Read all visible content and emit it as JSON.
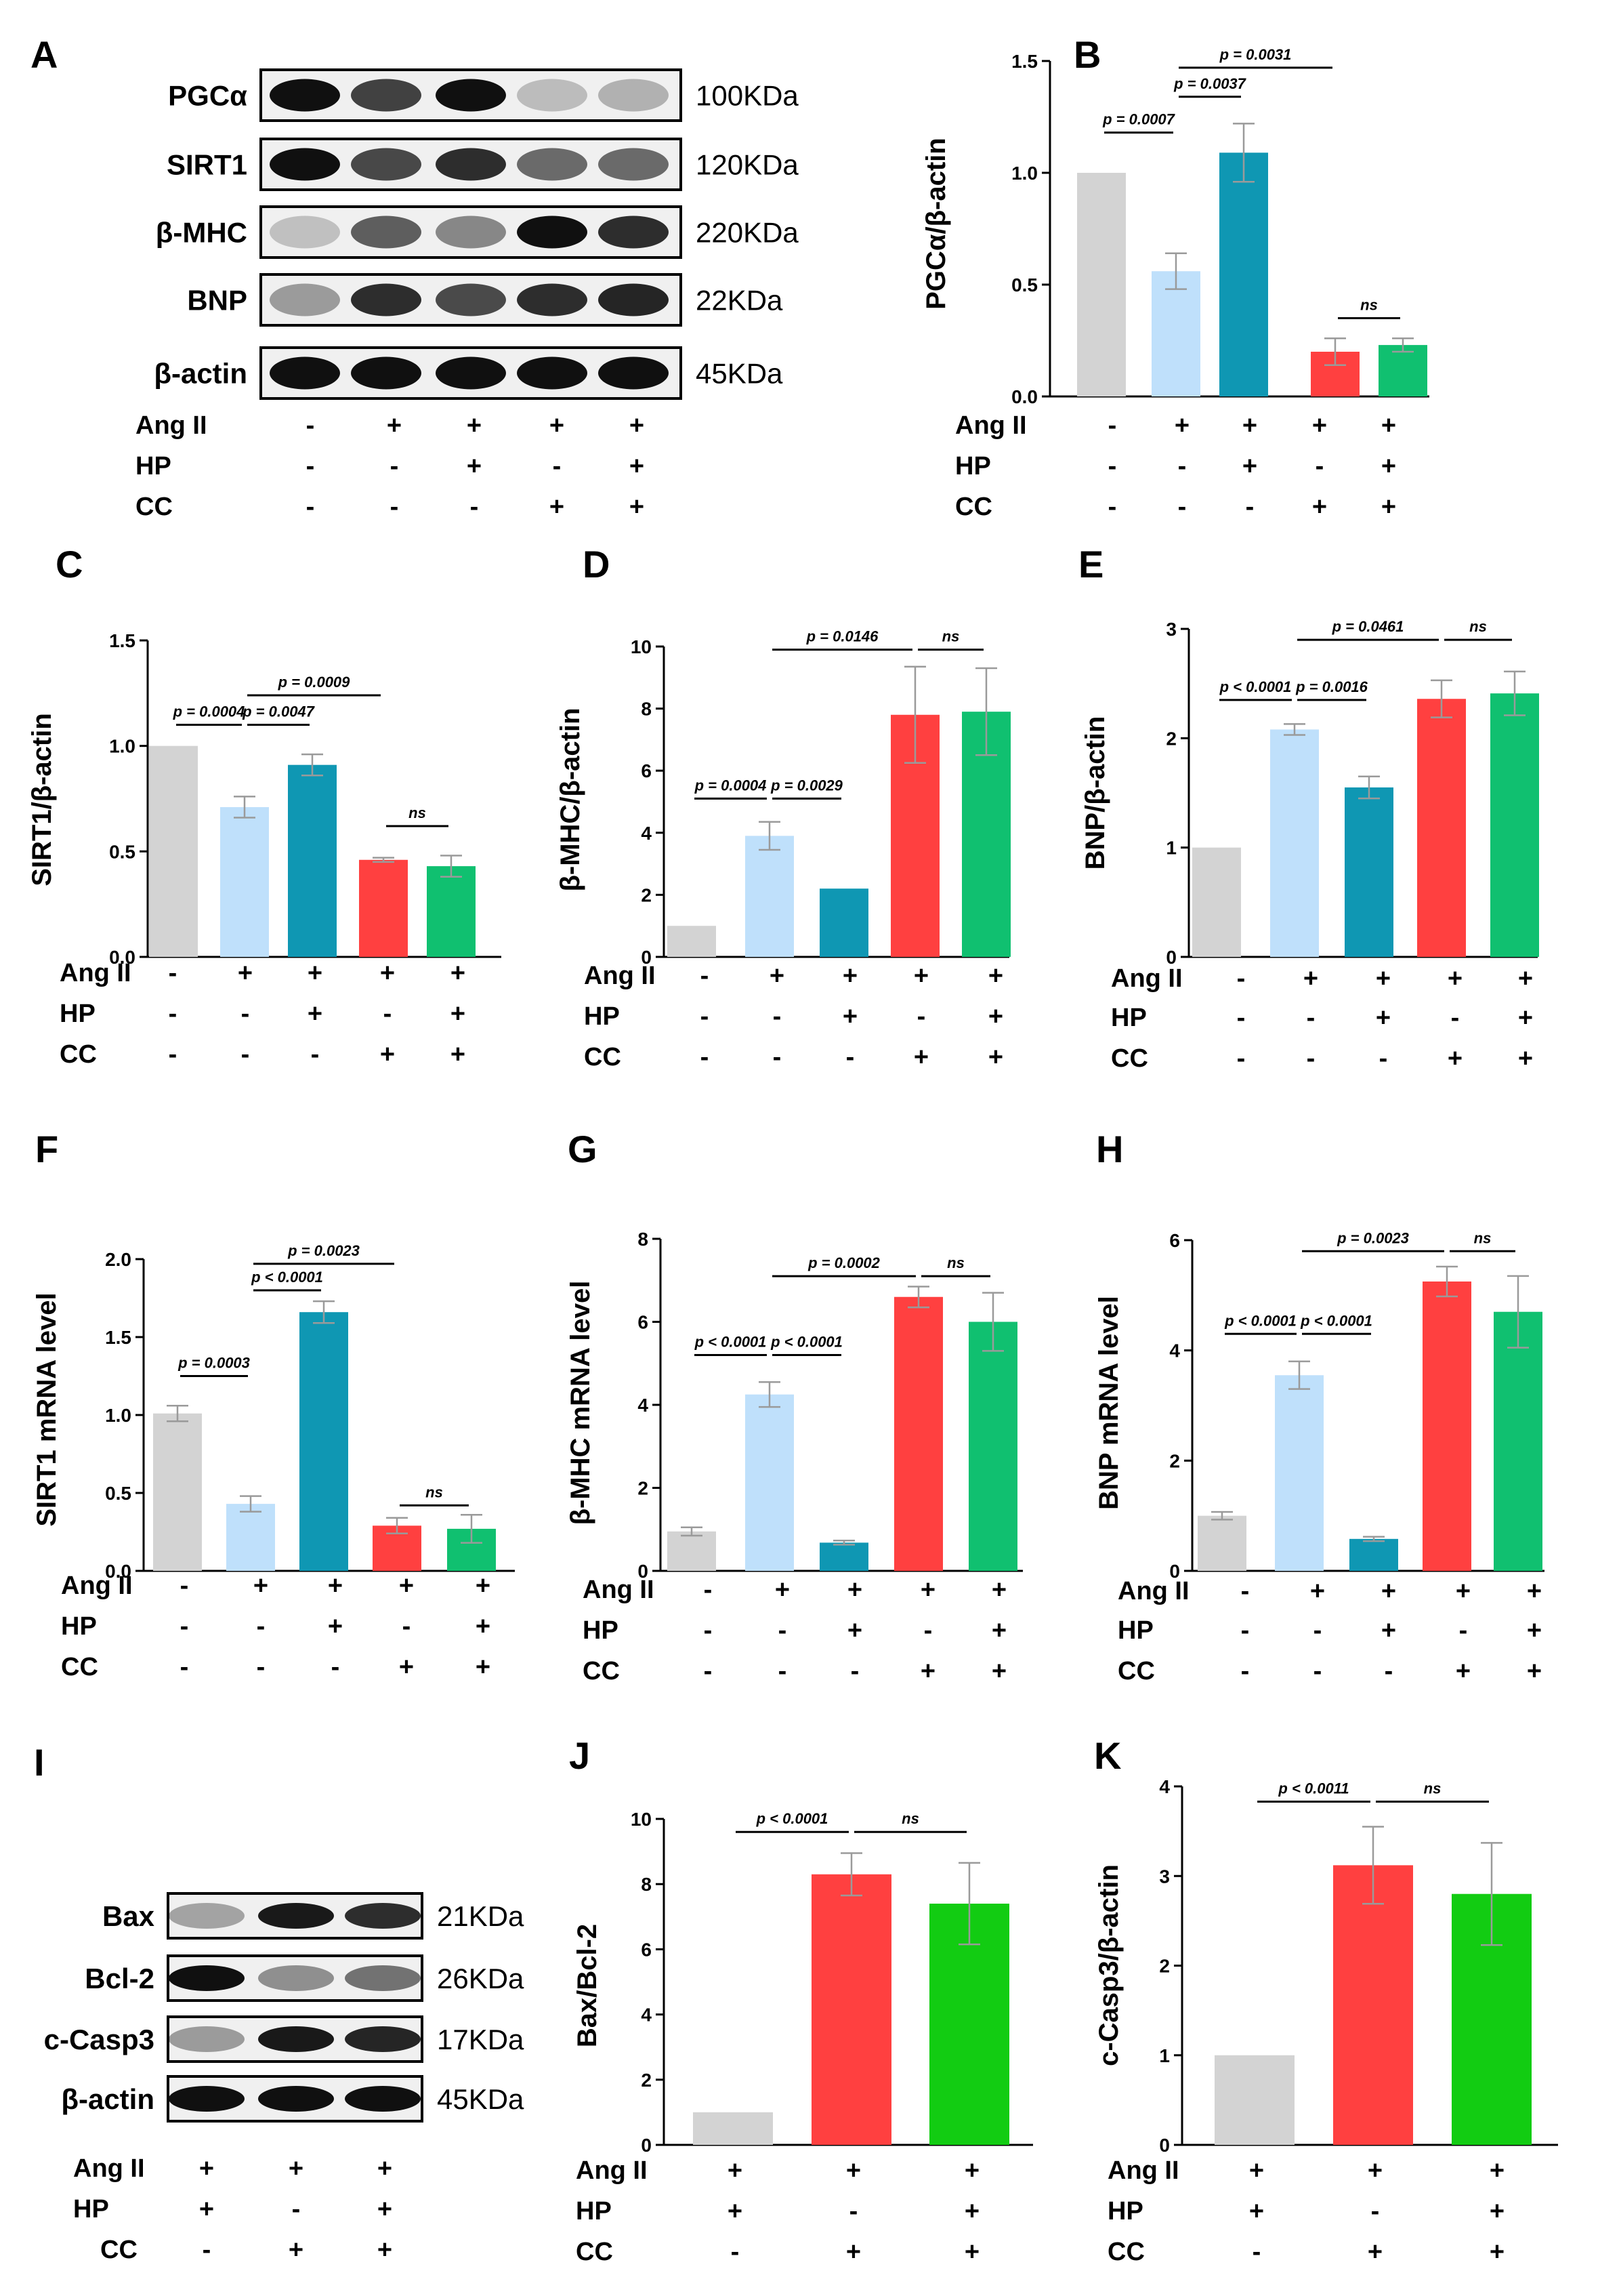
{
  "colors": {
    "control": "#d3d3d3",
    "angii": "#bfe0fb",
    "angii_hp": "#0f97b3",
    "angii_cc": "#ff4040",
    "angii_hp_cc": "#10c070",
    "angii_hp_cc_j": "#12cc12",
    "error_bar": "#9a9a9a",
    "band": "#101010",
    "blot_bg": "#f0f0f0"
  },
  "treatment_labels": [
    "Ang II",
    "HP",
    "CC"
  ],
  "treatment_signs_5": [
    [
      "-",
      "+",
      "+",
      "+",
      "+"
    ],
    [
      "-",
      "-",
      "+",
      "-",
      "+"
    ],
    [
      "-",
      "-",
      "-",
      "+",
      "+"
    ]
  ],
  "treatment_signs_3": [
    [
      "+",
      "+",
      "+"
    ],
    [
      "+",
      "-",
      "+"
    ],
    [
      "-",
      "+",
      "+"
    ]
  ],
  "blot_A": {
    "panel_label": "A",
    "rows": [
      {
        "protein": "PGCα",
        "size": "100KDa",
        "intensity": [
          1.0,
          0.75,
          1.0,
          0.12,
          0.18
        ]
      },
      {
        "protein": "SIRT1",
        "size": "120KDa",
        "intensity": [
          1.0,
          0.72,
          0.85,
          0.55,
          0.55
        ]
      },
      {
        "protein": "β-MHC",
        "size": "220KDa",
        "intensity": [
          0.1,
          0.6,
          0.4,
          1.0,
          0.85
        ]
      },
      {
        "protein": "BNP",
        "size": "22KDa",
        "intensity": [
          0.3,
          0.85,
          0.7,
          0.85,
          0.9
        ]
      },
      {
        "protein": "β-actin",
        "size": "45KDa",
        "intensity": [
          1.0,
          1.0,
          1.0,
          1.0,
          1.0
        ]
      }
    ]
  },
  "blot_I": {
    "panel_label": "I",
    "rows": [
      {
        "protein": "Bax",
        "size": "21KDa",
        "intensity": [
          0.25,
          0.95,
          0.85
        ]
      },
      {
        "protein": "Bcl-2",
        "size": "26KDa",
        "intensity": [
          1.0,
          0.35,
          0.5
        ]
      },
      {
        "protein": "c-Casp3",
        "size": "17KDa",
        "intensity": [
          0.3,
          0.95,
          0.9
        ]
      },
      {
        "protein": "β-actin",
        "size": "45KDa",
        "intensity": [
          1.0,
          1.0,
          1.0
        ]
      }
    ]
  },
  "chart_data": [
    {
      "panel_label": "B",
      "type": "bar",
      "ylabel": "PGCα/β-actin",
      "ylim": [
        0,
        1.5
      ],
      "ticks": [
        0.0,
        0.5,
        1.0,
        1.5
      ],
      "tick_labels": [
        "0.0",
        "0.5",
        "1.0",
        "1.5"
      ],
      "values": [
        1.0,
        0.56,
        1.09,
        0.2,
        0.23
      ],
      "errors": [
        0,
        0.08,
        0.13,
        0.06,
        0.03
      ],
      "annotations": [
        {
          "from": 0,
          "to": 1,
          "level": 1.18,
          "text": "p = 0.0007"
        },
        {
          "from": 1,
          "to": 2,
          "level": 1.34,
          "text": "p = 0.0037"
        },
        {
          "from": 1,
          "to": 3,
          "level": 1.47,
          "text": "p = 0.0031"
        },
        {
          "from": 3,
          "to": 4,
          "level": 0.35,
          "text": "ns"
        }
      ]
    },
    {
      "panel_label": "C",
      "type": "bar",
      "ylabel": "SIRT1/β-actin",
      "ylim": [
        0,
        1.5
      ],
      "ticks": [
        0.0,
        0.5,
        1.0,
        1.5
      ],
      "tick_labels": [
        "0.0",
        "0.5",
        "1.0",
        "1.5"
      ],
      "values": [
        1.0,
        0.71,
        0.91,
        0.46,
        0.43
      ],
      "errors": [
        0,
        0.05,
        0.05,
        0.01,
        0.05
      ],
      "annotations": [
        {
          "from": 0,
          "to": 1,
          "level": 1.1,
          "text": "p = 0.0004"
        },
        {
          "from": 1,
          "to": 2,
          "level": 1.1,
          "text": "p = 0.0047"
        },
        {
          "from": 1,
          "to": 3,
          "level": 1.24,
          "text": "p = 0.0009"
        },
        {
          "from": 3,
          "to": 4,
          "level": 0.62,
          "text": "ns"
        }
      ]
    },
    {
      "panel_label": "D",
      "type": "bar",
      "ylabel": "β-MHC/β-actin",
      "ylim": [
        0,
        10
      ],
      "ticks": [
        0,
        2,
        4,
        6,
        8,
        10
      ],
      "tick_labels": [
        "0",
        "2",
        "4",
        "6",
        "8",
        "10"
      ],
      "values": [
        1.0,
        3.9,
        2.2,
        7.8,
        7.9
      ],
      "errors": [
        0,
        0.45,
        0,
        1.55,
        1.4
      ],
      "annotations": [
        {
          "from": 0,
          "to": 1,
          "level": 5.1,
          "text": "p = 0.0004"
        },
        {
          "from": 1,
          "to": 2,
          "level": 5.1,
          "text": "p = 0.0029"
        },
        {
          "from": 1,
          "to": 3,
          "level": 9.9,
          "text": "p = 0.0146"
        },
        {
          "from": 3,
          "to": 4,
          "level": 9.9,
          "text": "ns"
        }
      ]
    },
    {
      "panel_label": "E",
      "type": "bar",
      "ylabel": "BNP/β-actin",
      "ylim": [
        0,
        3
      ],
      "ticks": [
        0,
        1,
        2,
        3
      ],
      "tick_labels": [
        "0",
        "1",
        "2",
        "3"
      ],
      "values": [
        1.0,
        2.08,
        1.55,
        2.36,
        2.41
      ],
      "errors": [
        0,
        0.05,
        0.1,
        0.17,
        0.2
      ],
      "annotations": [
        {
          "from": 0,
          "to": 1,
          "level": 2.35,
          "text": "p < 0.0001"
        },
        {
          "from": 1,
          "to": 2,
          "level": 2.35,
          "text": "p = 0.0016"
        },
        {
          "from": 1,
          "to": 3,
          "level": 2.9,
          "text": "p = 0.0461"
        },
        {
          "from": 3,
          "to": 4,
          "level": 2.9,
          "text": "ns"
        }
      ]
    },
    {
      "panel_label": "F",
      "type": "bar",
      "ylabel": "SIRT1 mRNA level",
      "ylim": [
        0,
        2.0
      ],
      "ticks": [
        0.0,
        0.5,
        1.0,
        1.5,
        2.0
      ],
      "tick_labels": [
        "0.0",
        "0.5",
        "1.0",
        "1.5",
        "2.0"
      ],
      "values": [
        1.01,
        0.43,
        1.66,
        0.29,
        0.27
      ],
      "errors": [
        0.05,
        0.05,
        0.07,
        0.05,
        0.09
      ],
      "annotations": [
        {
          "from": 0,
          "to": 1,
          "level": 1.25,
          "text": "p = 0.0003"
        },
        {
          "from": 1,
          "to": 2,
          "level": 1.8,
          "text": "p < 0.0001"
        },
        {
          "from": 1,
          "to": 3,
          "level": 1.97,
          "text": "p = 0.0023"
        },
        {
          "from": 3,
          "to": 4,
          "level": 0.42,
          "text": "ns"
        }
      ]
    },
    {
      "panel_label": "G",
      "type": "bar",
      "ylabel": "β-MHC mRNA level",
      "ylim": [
        0,
        8
      ],
      "ticks": [
        0,
        2,
        4,
        6,
        8
      ],
      "tick_labels": [
        "0",
        "2",
        "4",
        "6",
        "8"
      ],
      "values": [
        0.95,
        4.25,
        0.68,
        6.6,
        6.0
      ],
      "errors": [
        0.1,
        0.3,
        0.05,
        0.25,
        0.7
      ],
      "annotations": [
        {
          "from": 0,
          "to": 1,
          "level": 5.2,
          "text": "p < 0.0001"
        },
        {
          "from": 1,
          "to": 2,
          "level": 5.2,
          "text": "p < 0.0001"
        },
        {
          "from": 1,
          "to": 3,
          "level": 7.1,
          "text": "p = 0.0002"
        },
        {
          "from": 3,
          "to": 4,
          "level": 7.1,
          "text": "ns"
        }
      ]
    },
    {
      "panel_label": "H",
      "type": "bar",
      "ylabel": "BNP mRNA level",
      "ylim": [
        0,
        6
      ],
      "ticks": [
        0,
        2,
        4,
        6
      ],
      "tick_labels": [
        "0",
        "2",
        "4",
        "6"
      ],
      "values": [
        1.0,
        3.55,
        0.58,
        5.25,
        4.7
      ],
      "errors": [
        0.07,
        0.25,
        0.04,
        0.27,
        0.65
      ],
      "annotations": [
        {
          "from": 0,
          "to": 1,
          "level": 4.3,
          "text": "p < 0.0001"
        },
        {
          "from": 1,
          "to": 2,
          "level": 4.3,
          "text": "p < 0.0001"
        },
        {
          "from": 1,
          "to": 3,
          "level": 5.8,
          "text": "p = 0.0023"
        },
        {
          "from": 3,
          "to": 4,
          "level": 5.8,
          "text": "ns"
        }
      ]
    },
    {
      "panel_label": "J",
      "type": "bar",
      "ylabel": "Bax/Bcl-2",
      "ylim": [
        0,
        10
      ],
      "ticks": [
        0,
        2,
        4,
        6,
        8,
        10
      ],
      "tick_labels": [
        "0",
        "2",
        "4",
        "6",
        "8",
        "10"
      ],
      "values": [
        1.0,
        8.3,
        7.4
      ],
      "errors": [
        0,
        0.65,
        1.25
      ],
      "annotations": [
        {
          "from": 0,
          "to": 1,
          "level": 9.6,
          "text": "p < 0.0001"
        },
        {
          "from": 1,
          "to": 2,
          "level": 9.6,
          "text": "ns"
        }
      ]
    },
    {
      "panel_label": "K",
      "type": "bar",
      "ylabel": "c-Casp3/β-actin",
      "ylim": [
        0,
        4
      ],
      "ticks": [
        0,
        1,
        2,
        3,
        4
      ],
      "tick_labels": [
        "0",
        "1",
        "2",
        "3",
        "4"
      ],
      "values": [
        1.0,
        3.12,
        2.8
      ],
      "errors": [
        0,
        0.43,
        0.57
      ],
      "annotations": [
        {
          "from": 0,
          "to": 1,
          "level": 3.83,
          "text": "p < 0.0011"
        },
        {
          "from": 1,
          "to": 2,
          "level": 3.83,
          "text": "ns"
        }
      ]
    }
  ]
}
